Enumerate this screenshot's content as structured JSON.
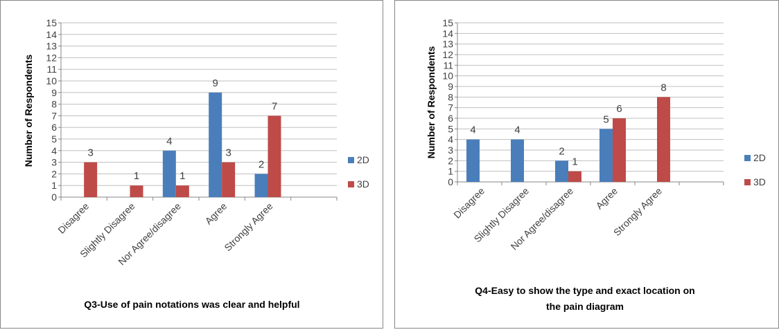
{
  "chart_data": [
    {
      "type": "bar",
      "title": "Q3-Use of pain notations  was clear and helpful",
      "ylabel": "Number of Respondents",
      "xlabel": "",
      "ylim": [
        0,
        15
      ],
      "yticks": [
        0,
        1,
        2,
        3,
        4,
        5,
        6,
        7,
        8,
        9,
        10,
        11,
        12,
        13,
        14,
        15
      ],
      "categories": [
        "Disagree",
        "Slightly Disagree",
        "Nor Agree/disagree",
        "Agree",
        "Strongly Agree",
        ""
      ],
      "series": [
        {
          "name": "2D",
          "color": "#4a7ebb",
          "values": [
            0,
            0,
            4,
            9,
            2,
            0
          ],
          "labels": [
            "",
            "",
            "4",
            "9",
            "2",
            ""
          ]
        },
        {
          "name": "3D",
          "color": "#be4b48",
          "values": [
            3,
            1,
            1,
            3,
            7,
            0
          ],
          "labels": [
            "3",
            "1",
            "1",
            "3",
            "7",
            ""
          ]
        }
      ],
      "grid": true,
      "legend": "right"
    },
    {
      "type": "bar",
      "title": "Q4-Easy to show the type and exact location on",
      "title_line2": "the pain diagram",
      "ylabel": "Number of Respondents",
      "xlabel": "",
      "ylim": [
        0,
        15
      ],
      "yticks": [
        0,
        1,
        2,
        3,
        4,
        5,
        6,
        7,
        8,
        9,
        10,
        11,
        12,
        13,
        14,
        15
      ],
      "categories": [
        "Disagree",
        "Slightly Disagree",
        "Nor Agree/disagree",
        "Agree",
        "Strongly Agree",
        ""
      ],
      "series": [
        {
          "name": "2D",
          "color": "#4a7ebb",
          "values": [
            4,
            4,
            2,
            5,
            0,
            0
          ],
          "labels": [
            "4",
            "4",
            "2",
            "5",
            "",
            ""
          ]
        },
        {
          "name": "3D",
          "color": "#be4b48",
          "values": [
            0,
            0,
            1,
            6,
            8,
            0
          ],
          "labels": [
            "",
            "",
            "1",
            "6",
            "8",
            ""
          ]
        }
      ],
      "grid": true,
      "legend": "right"
    }
  ]
}
